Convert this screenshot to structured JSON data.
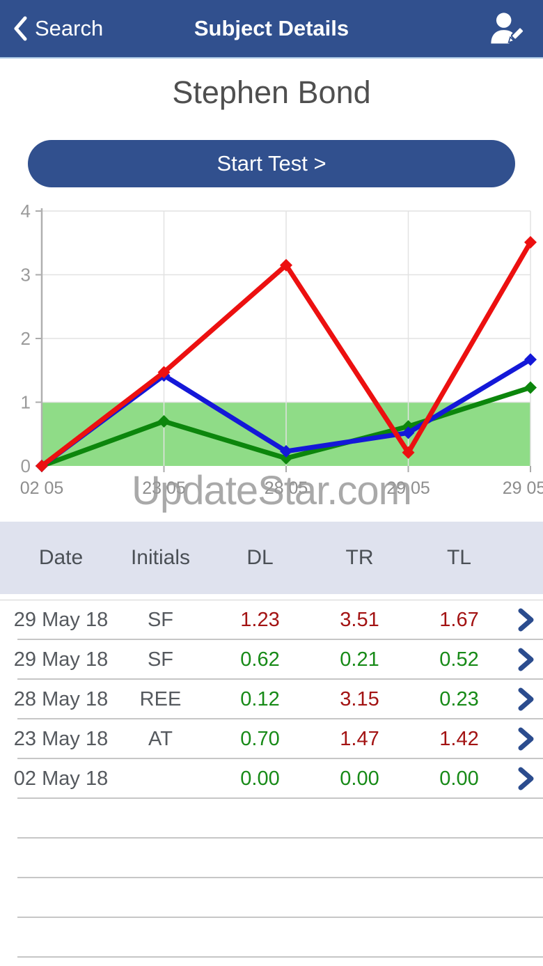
{
  "nav": {
    "back_label": "Search",
    "title": "Subject Details"
  },
  "subject_name": "Stephen Bond",
  "start_test_label": "Start Test >",
  "watermark": "UpdateStar.com",
  "chart_data": {
    "type": "line",
    "x": [
      "02 05",
      "23 05",
      "28 05",
      "29 05",
      "29 05"
    ],
    "series": [
      {
        "name": "DL",
        "color": "#0c860c",
        "values": [
          0.0,
          0.7,
          0.12,
          0.62,
          1.23
        ]
      },
      {
        "name": "TL",
        "color": "#1418d8",
        "values": [
          0.0,
          1.42,
          0.23,
          0.52,
          1.67
        ]
      },
      {
        "name": "TR",
        "color": "#ec1010",
        "values": [
          0.0,
          1.47,
          3.15,
          0.21,
          3.51
        ]
      }
    ],
    "ylim": [
      0,
      4
    ],
    "yticks": [
      0,
      1,
      2,
      3,
      4
    ],
    "reference_band": {
      "from": 0,
      "to": 1,
      "color": "#8fdc87"
    },
    "grid": true,
    "legend": "none",
    "marker": "diamond"
  },
  "table": {
    "headers": [
      "Date",
      "Initials",
      "DL",
      "TR",
      "TL"
    ],
    "rows": [
      {
        "date": "29 May 18",
        "initials": "SF",
        "values": [
          {
            "text": "1.23",
            "level": "high"
          },
          {
            "text": "3.51",
            "level": "high"
          },
          {
            "text": "1.67",
            "level": "high"
          }
        ]
      },
      {
        "date": "29 May 18",
        "initials": "SF",
        "values": [
          {
            "text": "0.62",
            "level": "normal"
          },
          {
            "text": "0.21",
            "level": "normal"
          },
          {
            "text": "0.52",
            "level": "normal"
          }
        ]
      },
      {
        "date": "28 May 18",
        "initials": "REE",
        "values": [
          {
            "text": "0.12",
            "level": "normal"
          },
          {
            "text": "3.15",
            "level": "high"
          },
          {
            "text": "0.23",
            "level": "normal"
          }
        ]
      },
      {
        "date": "23 May 18",
        "initials": "AT",
        "values": [
          {
            "text": "0.70",
            "level": "normal"
          },
          {
            "text": "1.47",
            "level": "high"
          },
          {
            "text": "1.42",
            "level": "high"
          }
        ]
      },
      {
        "date": "02 May 18",
        "initials": "",
        "values": [
          {
            "text": "0.00",
            "level": "normal"
          },
          {
            "text": "0.00",
            "level": "normal"
          },
          {
            "text": "0.00",
            "level": "normal"
          }
        ]
      }
    ],
    "empty_row_count": 4
  },
  "colors": {
    "navbar_blue": "#31508e",
    "nav_border": "#a9c6e3",
    "header_bg": "#dfe2ee",
    "value_high_red": "#a31313",
    "value_normal_green": "#178a17",
    "band_green": "#8fdc87",
    "chevron_blue": "#2b4c8e"
  }
}
